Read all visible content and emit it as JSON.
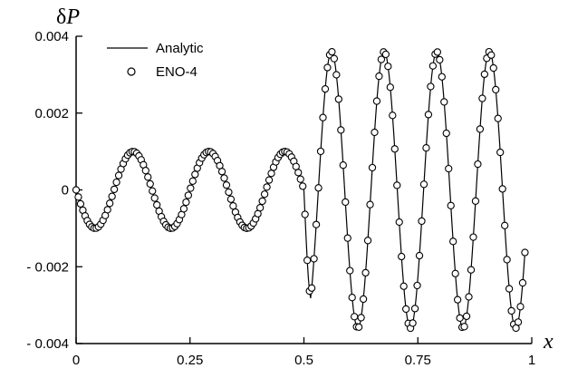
{
  "chart_data": {
    "type": "line",
    "xlabel": "x",
    "ylabel": "δP",
    "xlim": [
      0,
      1
    ],
    "ylim": [
      -0.004,
      0.004
    ],
    "xticks": [
      {
        "value": 0,
        "label": "0"
      },
      {
        "value": 0.25,
        "label": "0.25"
      },
      {
        "value": 0.5,
        "label": "0.5"
      },
      {
        "value": 0.75,
        "label": "0.75"
      },
      {
        "value": 1,
        "label": "1"
      }
    ],
    "yticks": [
      {
        "value": 0.004,
        "label": "0.004"
      },
      {
        "value": 0.002,
        "label": "0.002"
      },
      {
        "value": 0,
        "label": "0"
      },
      {
        "value": -0.002,
        "label": "- 0.002"
      },
      {
        "value": -0.004,
        "label": "- 0.004"
      }
    ],
    "legend_position": "top-left",
    "series": [
      {
        "name": "Analytic",
        "style": "line",
        "color": "#000000",
        "function": "x<0.5: -0.001*sin(12*pi*x) ; x>=0.5: 0.0036*sin(18*pi*(x-0.5)+pi) approx, sampled",
        "x_start": 0,
        "x_end": 0.985,
        "samples": 400
      },
      {
        "name": "ENO-4",
        "style": "marker",
        "marker": "open-circle",
        "color": "#000000",
        "x_start": 0,
        "x_end": 0.985,
        "samples": 200
      }
    ]
  }
}
